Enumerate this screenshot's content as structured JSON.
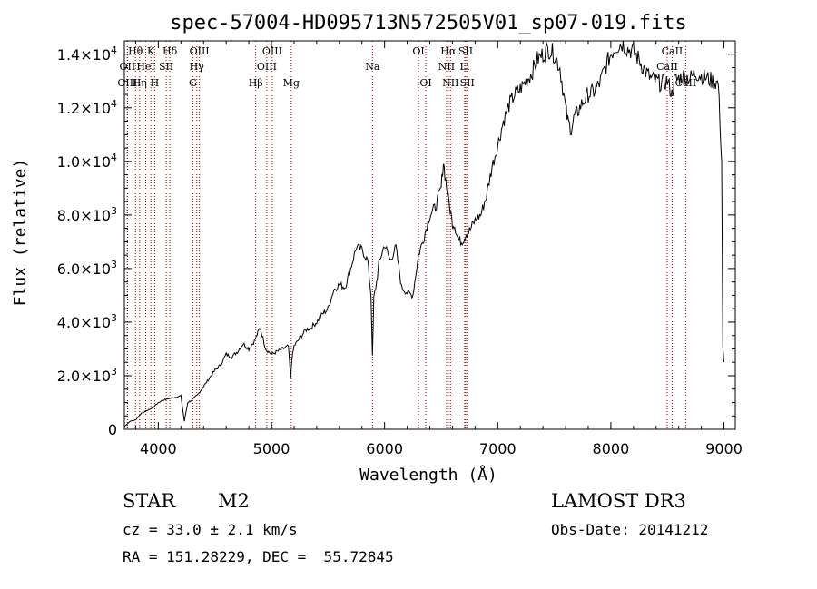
{
  "chart_data": {
    "type": "line",
    "title": "spec-57004-HD095713N572505V01_sp07-019.fits",
    "xlabel": "Wavelength (Å)",
    "ylabel": "Flux (relative)",
    "xlim": [
      3700,
      9100
    ],
    "ylim": [
      0,
      14500
    ],
    "x_ticks": [
      4000,
      5000,
      6000,
      7000,
      8000,
      9000
    ],
    "x_tick_labels": [
      "4000",
      "5000",
      "6000",
      "7000",
      "8000",
      "9000"
    ],
    "y_ticks": [
      0,
      2000,
      4000,
      6000,
      8000,
      10000,
      12000,
      14000
    ],
    "y_tick_labels": [
      {
        "mant": "0",
        "exp": ""
      },
      {
        "mant": "2.0×10",
        "exp": "3"
      },
      {
        "mant": "4.0×10",
        "exp": "3"
      },
      {
        "mant": "6.0×10",
        "exp": "3"
      },
      {
        "mant": "8.0×10",
        "exp": "3"
      },
      {
        "mant": "1.0×10",
        "exp": "4"
      },
      {
        "mant": "1.2×10",
        "exp": "4"
      },
      {
        "mant": "1.4×10",
        "exp": "4"
      }
    ],
    "series": [
      {
        "name": "spectrum",
        "x": [
          3700,
          3750,
          3800,
          3850,
          3900,
          3950,
          4000,
          4050,
          4100,
          4150,
          4200,
          4230,
          4260,
          4300,
          4350,
          4400,
          4450,
          4500,
          4550,
          4600,
          4650,
          4700,
          4750,
          4800,
          4850,
          4880,
          4900,
          4950,
          5000,
          5050,
          5100,
          5150,
          5170,
          5180,
          5200,
          5250,
          5300,
          5350,
          5400,
          5450,
          5500,
          5550,
          5600,
          5650,
          5700,
          5750,
          5800,
          5850,
          5880,
          5893,
          5905,
          5930,
          5950,
          6000,
          6050,
          6100,
          6150,
          6200,
          6250,
          6300,
          6350,
          6400,
          6450,
          6500,
          6520,
          6540,
          6563,
          6580,
          6600,
          6620,
          6650,
          6680,
          6700,
          6720,
          6750,
          6800,
          6850,
          6900,
          6950,
          7000,
          7050,
          7100,
          7150,
          7200,
          7250,
          7300,
          7350,
          7400,
          7450,
          7500,
          7550,
          7600,
          7620,
          7650,
          7680,
          7700,
          7750,
          7800,
          7850,
          7900,
          7950,
          8000,
          8050,
          8100,
          8150,
          8200,
          8250,
          8300,
          8350,
          8400,
          8450,
          8500,
          8540,
          8560,
          8600,
          8650,
          8700,
          8750,
          8800,
          8850,
          8900,
          8950,
          8980,
          8990,
          9000
        ],
        "y": [
          100,
          300,
          350,
          600,
          700,
          800,
          1000,
          1100,
          1150,
          1200,
          1250,
          300,
          1000,
          1100,
          1300,
          1600,
          1900,
          2200,
          2400,
          2800,
          2700,
          2900,
          3200,
          3000,
          3300,
          3600,
          3800,
          3000,
          2800,
          2900,
          3000,
          3100,
          1900,
          2600,
          3100,
          3400,
          3700,
          3800,
          4000,
          4300,
          4500,
          5200,
          5400,
          5300,
          6000,
          6800,
          6700,
          6300,
          5000,
          2700,
          4900,
          5500,
          6200,
          6900,
          6300,
          6800,
          5300,
          5100,
          5000,
          6500,
          7200,
          8000,
          8300,
          9000,
          10000,
          9300,
          8600,
          8200,
          7700,
          7600,
          7100,
          7000,
          7100,
          7300,
          7400,
          7800,
          8000,
          8700,
          9800,
          10600,
          11500,
          12100,
          12500,
          12700,
          13000,
          13300,
          13800,
          14000,
          14200,
          14000,
          13500,
          12000,
          11500,
          11200,
          11700,
          11800,
          12200,
          12500,
          12600,
          12900,
          13500,
          14000,
          14300,
          14400,
          14200,
          14100,
          13800,
          13400,
          13100,
          13000,
          12900,
          13000,
          12500,
          13000,
          13100,
          13200,
          13100,
          13300,
          13200,
          13100,
          13000,
          12900,
          10000,
          3000,
          2500
        ]
      }
    ],
    "lines": [
      {
        "label": "Hθ",
        "wave": 3798,
        "row": 0
      },
      {
        "label": "K",
        "wave": 3934,
        "row": 0
      },
      {
        "label": "Hδ",
        "wave": 4102,
        "row": 0
      },
      {
        "label": "OIII",
        "wave": 4363,
        "row": 0
      },
      {
        "label": "OIII",
        "wave": 5007,
        "row": 0
      },
      {
        "label": "OI",
        "wave": 6300,
        "row": 0
      },
      {
        "label": "Hα",
        "wave": 6563,
        "row": 0
      },
      {
        "label": "SII",
        "wave": 6717,
        "row": 0
      },
      {
        "label": "CaII",
        "wave": 8542,
        "row": 0
      },
      {
        "label": "OII",
        "wave": 3727,
        "row": 1
      },
      {
        "label": "HeI",
        "wave": 3889,
        "row": 1
      },
      {
        "label": "SII",
        "wave": 4070,
        "row": 1
      },
      {
        "label": "Hγ",
        "wave": 4340,
        "row": 1
      },
      {
        "label": "OIII",
        "wave": 4959,
        "row": 1
      },
      {
        "label": "Na",
        "wave": 5893,
        "row": 1
      },
      {
        "label": "NII",
        "wave": 6548,
        "row": 1
      },
      {
        "label": "Li",
        "wave": 6708,
        "row": 1
      },
      {
        "label": "CaII",
        "wave": 8498,
        "row": 1
      },
      {
        "label": "OIII",
        "wave": 3727,
        "row": 2
      },
      {
        "label": "Hη",
        "wave": 3835,
        "row": 2
      },
      {
        "label": "H",
        "wave": 3968,
        "row": 2
      },
      {
        "label": "G",
        "wave": 4305,
        "row": 2
      },
      {
        "label": "Hβ",
        "wave": 4861,
        "row": 2
      },
      {
        "label": "Mg",
        "wave": 5175,
        "row": 2
      },
      {
        "label": "OI",
        "wave": 6364,
        "row": 2
      },
      {
        "label": "NII",
        "wave": 6583,
        "row": 2
      },
      {
        "label": "SII",
        "wave": 6731,
        "row": 2
      },
      {
        "label": "CaII",
        "wave": 8662,
        "row": 2
      }
    ]
  },
  "info": {
    "class": "STAR",
    "subclass": "M2",
    "survey": "LAMOST DR3",
    "redshift": "cz = 33.0 ± 2.1 km/s",
    "obs_date": "Obs-Date: 20141212",
    "coords": "RA = 151.28229, DEC =  55.72845"
  }
}
